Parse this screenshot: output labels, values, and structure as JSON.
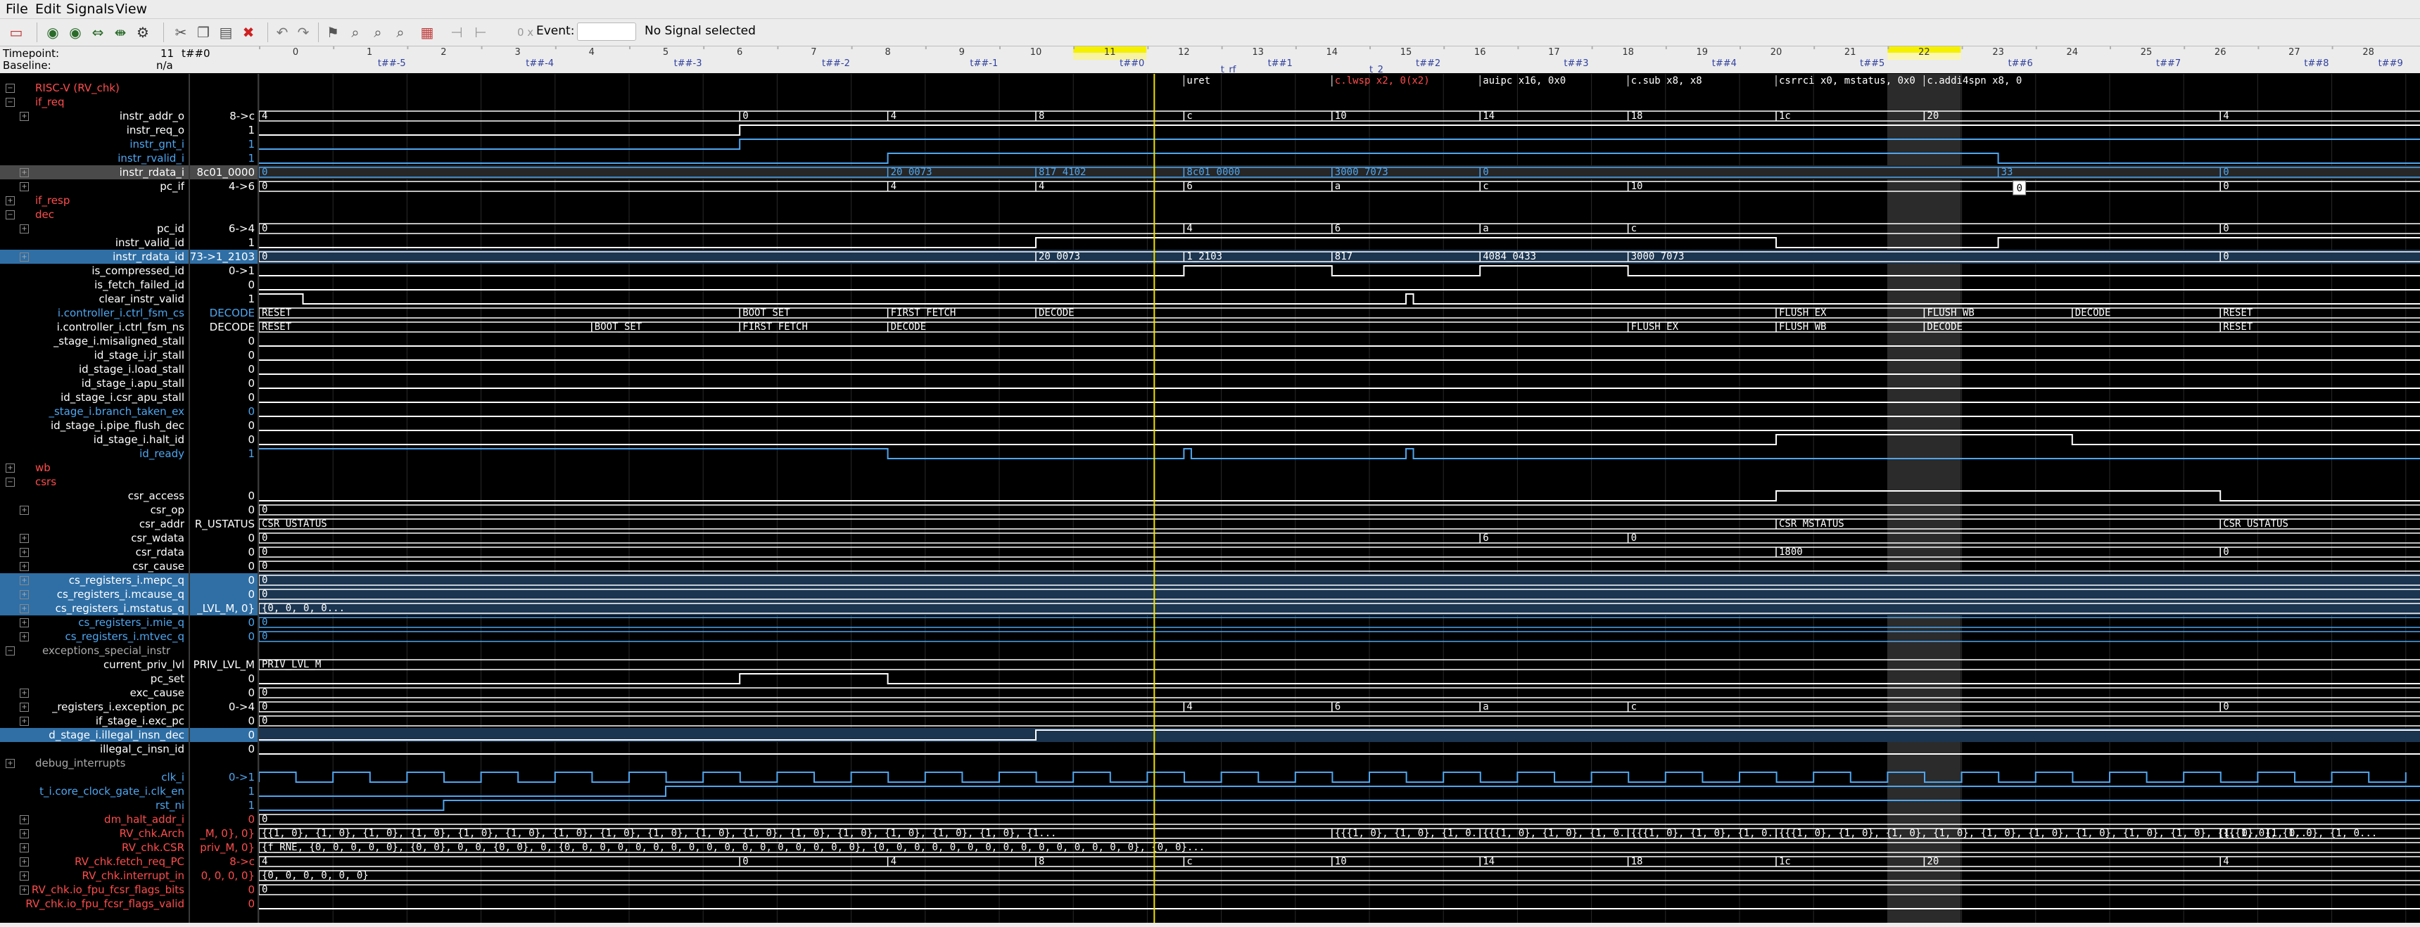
{
  "menu": [
    "File",
    "Edit",
    "Signals",
    "View"
  ],
  "toolbar": {
    "time_label": "0 x",
    "event_label": "Event:",
    "event_value": "",
    "status": "No Signal selected"
  },
  "timepoint": {
    "label": "Timepoint:",
    "value": "11",
    "marker": "t##0",
    "baseline_label": "Baseline:",
    "baseline_value": "n/a"
  },
  "ruler": {
    "cycles": [
      "0",
      "1",
      "2",
      "3",
      "4",
      "5",
      "6",
      "7",
      "8",
      "9",
      "10",
      "11",
      "12",
      "13",
      "14",
      "15",
      "16",
      "17",
      "18",
      "19",
      "20",
      "21",
      "22",
      "23",
      "24",
      "25",
      "26",
      "27",
      "28"
    ],
    "markers": [
      {
        "label": "t##-5",
        "cycle": 1.3
      },
      {
        "label": "t##-4",
        "cycle": 3.3
      },
      {
        "label": "t##-3",
        "cycle": 5.3
      },
      {
        "label": "t##-2",
        "cycle": 7.3
      },
      {
        "label": "t##-1",
        "cycle": 9.3
      },
      {
        "label": "t##0",
        "cycle": 11.3
      },
      {
        "label": "t##1",
        "cycle": 13.3
      },
      {
        "label": "t##2",
        "cycle": 15.3
      },
      {
        "label": "t##3",
        "cycle": 17.3
      },
      {
        "label": "t##4",
        "cycle": 19.3
      },
      {
        "label": "t##5",
        "cycle": 21.3
      },
      {
        "label": "t##6",
        "cycle": 23.3
      },
      {
        "label": "t##7",
        "cycle": 25.3
      },
      {
        "label": "t##8",
        "cycle": 27.3
      },
      {
        "label": "t##9",
        "cycle": 28.3
      }
    ],
    "annotations": [
      {
        "label": "t_rf",
        "cycle": 12.6
      },
      {
        "label": "t_2",
        "cycle": 14.6
      }
    ],
    "highlight_cycles": [
      11,
      22
    ],
    "cursor_cycle": 11.6
  },
  "colors": {
    "bg": "#000000",
    "grid": "#2a2a2a",
    "wave": "#ffffff",
    "blue": "#4ea6f0",
    "red": "#ff4c4c",
    "hl": "#2f6fa6",
    "cursor": "#f0e000"
  },
  "rows": [
    {
      "name": "RISC-V (RV_chk)",
      "color": "red",
      "group": true,
      "expanded": true
    },
    {
      "name": "if_req",
      "color": "red",
      "group": true,
      "expanded": true
    },
    {
      "name": "instr_addr_o",
      "value": "8->c",
      "exp": true,
      "wave": {
        "type": "bus",
        "segs": [
          [
            0,
            "4"
          ],
          [
            6,
            "0"
          ],
          [
            8,
            "4"
          ],
          [
            10,
            "8"
          ],
          [
            12,
            "c"
          ],
          [
            14,
            "10"
          ],
          [
            16,
            "14"
          ],
          [
            18,
            "18"
          ],
          [
            20,
            "1c"
          ],
          [
            22,
            "20"
          ],
          [
            26,
            "4"
          ]
        ]
      }
    },
    {
      "name": "instr_req_o",
      "value": "1",
      "wave": {
        "type": "bit",
        "start": 0,
        "edges": [
          6
        ]
      }
    },
    {
      "name": "instr_gnt_i",
      "value": "1",
      "color": "blue",
      "wave": {
        "type": "bit",
        "start": 0,
        "edges": [
          6
        ],
        "color": "blue"
      }
    },
    {
      "name": "instr_rvalid_i",
      "value": "1",
      "color": "blue",
      "wave": {
        "type": "bit",
        "start": 0,
        "edges": [
          8,
          23
        ],
        "color": "blue"
      }
    },
    {
      "name": "instr_rdata_i",
      "value": "8c01_0000",
      "hl": "grey",
      "exp": true,
      "wave": {
        "type": "bus",
        "color": "blue",
        "segs": [
          [
            0,
            "0"
          ],
          [
            8,
            "20_0073"
          ],
          [
            10,
            "817_4102"
          ],
          [
            12,
            "8c01_0000"
          ],
          [
            14,
            "3000_7073"
          ],
          [
            16,
            "0"
          ],
          [
            23,
            "33"
          ],
          [
            26,
            "0"
          ]
        ]
      }
    },
    {
      "name": "pc_if",
      "value": "4->6",
      "exp": true,
      "wave": {
        "type": "bus",
        "segs": [
          [
            0,
            "0"
          ],
          [
            8,
            "4"
          ],
          [
            10,
            "4"
          ],
          [
            12,
            "6"
          ],
          [
            14,
            "a"
          ],
          [
            16,
            "c"
          ],
          [
            18,
            "10"
          ],
          [
            26,
            "0"
          ]
        ]
      }
    },
    {
      "name": "if_resp",
      "color": "red",
      "group": true
    },
    {
      "name": "dec",
      "color": "red",
      "group": true,
      "expanded": true
    },
    {
      "name": "pc_id",
      "value": "6->4",
      "exp": true,
      "wave": {
        "type": "bus",
        "segs": [
          [
            0,
            "0"
          ],
          [
            12,
            "4"
          ],
          [
            14,
            "6"
          ],
          [
            16,
            "a"
          ],
          [
            18,
            "c"
          ],
          [
            26,
            "0"
          ]
        ]
      }
    },
    {
      "name": "instr_valid_id",
      "value": "1",
      "wave": {
        "type": "bit",
        "start": 0,
        "edges": [
          10,
          20,
          23
        ]
      }
    },
    {
      "name": "instr_rdata_id",
      "value": "73->1_2103",
      "hl": "blue",
      "exp": true,
      "wave": {
        "type": "bus",
        "segs": [
          [
            0,
            "0"
          ],
          [
            10,
            "20_0073"
          ],
          [
            12,
            "1_2103"
          ],
          [
            14,
            "817"
          ],
          [
            16,
            "4084_0433"
          ],
          [
            18,
            "3000_7073"
          ],
          [
            26,
            "0"
          ]
        ]
      }
    },
    {
      "name": "is_compressed_id",
      "value": "0->1",
      "wave": {
        "type": "bit",
        "start": 0,
        "edges": [
          12,
          14,
          16,
          18
        ]
      }
    },
    {
      "name": "is_fetch_failed_id",
      "value": "0",
      "wave": {
        "type": "bit",
        "start": 0,
        "edges": []
      }
    },
    {
      "name": "clear_instr_valid",
      "value": "1",
      "wave": {
        "type": "bit",
        "start": 1,
        "edges": [
          0.1,
          15,
          15.1
        ]
      }
    },
    {
      "name": "i.controller_i.ctrl_fsm_cs",
      "value": "DECODE",
      "color": "blue",
      "wave": {
        "type": "bus",
        "segs": [
          [
            0,
            "RESET"
          ],
          [
            6,
            "BOOT_SET"
          ],
          [
            8,
            "FIRST_FETCH"
          ],
          [
            10,
            "DECODE"
          ],
          [
            20,
            "FLUSH_EX"
          ],
          [
            22,
            "FLUSH_WB"
          ],
          [
            24,
            "DECODE"
          ],
          [
            26,
            "RESET"
          ]
        ]
      }
    },
    {
      "name": "i.controller_i.ctrl_fsm_ns",
      "value": "DECODE",
      "wave": {
        "type": "bus",
        "segs": [
          [
            0,
            "RESET"
          ],
          [
            4,
            "BOOT_SET"
          ],
          [
            6,
            "FIRST_FETCH"
          ],
          [
            8,
            "DECODE"
          ],
          [
            18,
            "FLUSH_EX"
          ],
          [
            20,
            "FLUSH_WB"
          ],
          [
            22,
            "DECODE"
          ],
          [
            26,
            "RESET"
          ]
        ]
      }
    },
    {
      "name": "_stage_i.misaligned_stall",
      "value": "0",
      "wave": {
        "type": "bit",
        "start": 0,
        "edges": []
      }
    },
    {
      "name": "id_stage_i.jr_stall",
      "value": "0",
      "wave": {
        "type": "bit",
        "start": 0,
        "edges": []
      }
    },
    {
      "name": "id_stage_i.load_stall",
      "value": "0",
      "wave": {
        "type": "bit",
        "start": 0,
        "edges": []
      }
    },
    {
      "name": "id_stage_i.apu_stall",
      "value": "0",
      "wave": {
        "type": "bit",
        "start": 0,
        "edges": []
      }
    },
    {
      "name": "id_stage_i.csr_apu_stall",
      "value": "0",
      "wave": {
        "type": "bit",
        "start": 0,
        "edges": []
      }
    },
    {
      "name": "_stage_i.branch_taken_ex",
      "value": "0",
      "color": "blue",
      "wave": {
        "type": "bit",
        "start": 0,
        "edges": []
      }
    },
    {
      "name": "id_stage_i.pipe_flush_dec",
      "value": "0",
      "wave": {
        "type": "bit",
        "start": 0,
        "edges": []
      }
    },
    {
      "name": "id_stage_i.halt_id",
      "value": "0",
      "wave": {
        "type": "bit",
        "start": 0,
        "edges": [
          20,
          24
        ]
      }
    },
    {
      "name": "id_ready",
      "value": "1",
      "color": "blue",
      "wave": {
        "type": "bit",
        "start": 1,
        "edges": [
          8,
          12,
          12.1,
          15,
          15.1
        ],
        "color": "blue"
      }
    },
    {
      "name": "wb",
      "color": "red",
      "group": true
    },
    {
      "name": "csrs",
      "color": "red",
      "group": true,
      "expanded": true
    },
    {
      "name": "csr_access",
      "value": "0",
      "wave": {
        "type": "bit",
        "start": 0,
        "edges": [
          20,
          26
        ]
      }
    },
    {
      "name": "csr_op",
      "value": "0",
      "exp": true,
      "wave": {
        "type": "bus",
        "segs": [
          [
            0,
            "0"
          ]
        ]
      }
    },
    {
      "name": "csr_addr",
      "value": "R_USTATUS",
      "wave": {
        "type": "bus",
        "segs": [
          [
            0,
            "CSR_USTATUS"
          ],
          [
            20,
            "CSR_MSTATUS"
          ],
          [
            26,
            "CSR_USTATUS"
          ]
        ]
      }
    },
    {
      "name": "csr_wdata",
      "value": "0",
      "exp": true,
      "wave": {
        "type": "bus",
        "segs": [
          [
            0,
            "0"
          ],
          [
            16,
            "6"
          ],
          [
            18,
            "0"
          ]
        ]
      }
    },
    {
      "name": "csr_rdata",
      "value": "0",
      "exp": true,
      "wave": {
        "type": "bus",
        "segs": [
          [
            0,
            "0"
          ],
          [
            20,
            "1800"
          ],
          [
            26,
            "0"
          ]
        ]
      }
    },
    {
      "name": "csr_cause",
      "value": "0",
      "exp": true,
      "wave": {
        "type": "bus",
        "segs": [
          [
            0,
            "0"
          ]
        ]
      }
    },
    {
      "name": "cs_registers_i.mepc_q",
      "value": "0",
      "hl": "blue",
      "exp": true,
      "wave": {
        "type": "bus",
        "segs": [
          [
            0,
            "0"
          ]
        ]
      }
    },
    {
      "name": "cs_registers_i.mcause_q",
      "value": "0",
      "hl": "blue",
      "exp": true,
      "wave": {
        "type": "bus",
        "segs": [
          [
            0,
            "0"
          ]
        ]
      }
    },
    {
      "name": "cs_registers_i.mstatus_q",
      "value": "_LVL_M, 0}",
      "hl": "blue",
      "exp": true,
      "wave": {
        "type": "bus",
        "segs": [
          [
            0,
            "{0, 0, 0, 0..."
          ]
        ]
      }
    },
    {
      "name": "cs_registers_i.mie_q",
      "value": "0",
      "color": "blue",
      "exp": true,
      "wave": {
        "type": "bus",
        "color": "blue",
        "segs": [
          [
            0,
            "0"
          ]
        ]
      }
    },
    {
      "name": "cs_registers_i.mtvec_q",
      "value": "0",
      "color": "blue",
      "exp": true,
      "wave": {
        "type": "bus",
        "color": "blue",
        "segs": [
          [
            0,
            "0"
          ]
        ]
      }
    },
    {
      "name": "exceptions_special_instr",
      "group": true,
      "expanded": true
    },
    {
      "name": "current_priv_lvl",
      "value": "PRIV_LVL_M",
      "wave": {
        "type": "bus",
        "segs": [
          [
            0,
            "PRIV_LVL_M"
          ]
        ]
      }
    },
    {
      "name": "pc_set",
      "value": "0",
      "wave": {
        "type": "bit",
        "start": 0,
        "edges": [
          6,
          8
        ]
      }
    },
    {
      "name": "exc_cause",
      "value": "0",
      "exp": true,
      "wave": {
        "type": "bus",
        "segs": [
          [
            0,
            "0"
          ]
        ]
      }
    },
    {
      "name": "_registers_i.exception_pc",
      "value": "0->4",
      "exp": true,
      "wave": {
        "type": "bus",
        "segs": [
          [
            0,
            "0"
          ],
          [
            12,
            "4"
          ],
          [
            14,
            "6"
          ],
          [
            16,
            "a"
          ],
          [
            18,
            "c"
          ],
          [
            26,
            "0"
          ]
        ]
      }
    },
    {
      "name": "if_stage_i.exc_pc",
      "value": "0",
      "exp": true,
      "wave": {
        "type": "bus",
        "segs": [
          [
            0,
            "0"
          ]
        ]
      }
    },
    {
      "name": "d_stage_i.illegal_insn_dec",
      "value": "0",
      "hl": "blue",
      "wave": {
        "type": "bit",
        "start": 0,
        "edges": [
          10
        ]
      }
    },
    {
      "name": "illegal_c_insn_id",
      "value": "0",
      "wave": {
        "type": "bit",
        "start": 0,
        "edges": []
      }
    },
    {
      "name": "debug_interrupts",
      "group": true
    },
    {
      "name": "clk_i",
      "value": "0->1",
      "color": "blue",
      "wave": {
        "type": "clk",
        "color": "blue"
      }
    },
    {
      "name": "t_i.core_clock_gate_i.clk_en",
      "value": "1",
      "color": "blue",
      "wave": {
        "type": "bit",
        "start": 0,
        "edges": [
          5
        ],
        "color": "blue"
      }
    },
    {
      "name": "rst_ni",
      "value": "1",
      "color": "blue",
      "wave": {
        "type": "bit",
        "start": 0,
        "edges": [
          2
        ],
        "color": "blue"
      }
    },
    {
      "name": "dm_halt_addr_i",
      "value": "0",
      "color": "red",
      "exp": true,
      "wave": {
        "type": "bus",
        "segs": [
          [
            0,
            "0"
          ]
        ]
      }
    },
    {
      "name": "RV_chk.Arch",
      "value": "_M, 0}, 0}",
      "color": "red",
      "exp": true,
      "wave": {
        "type": "bus",
        "segs": [
          [
            0,
            "{{1, 0}, {1, 0}, {1, 0}, {1, 0}, {1, 0}, {1, 0}, {1, 0}, {1, 0}, {1, 0}, {1, 0}, {1, 0}, {1, 0}, {1, 0}, {1, 0}, {1, 0}, {1, 0}, {1..."
          ],
          [
            14,
            "{{{1, 0}, {1, 0}, {1, 0..."
          ],
          [
            16,
            "{{{1, 0}, {1, 0}, {1, 0..."
          ],
          [
            18,
            "{{{1, 0}, {1, 0}, {1, 0..."
          ],
          [
            20,
            "{{{1, 0}, {1, 0}, {1, 0}, {1, 0}, {1, 0}, {1, 0}, {1, 0}, {1, 0}, {1, 0}, {1, 0}, {1, 0..."
          ],
          [
            26,
            "{{{1, 0}, {1, 0}, {1, 0..."
          ]
        ]
      }
    },
    {
      "name": "RV_chk.CSR",
      "value": "priv_M, 0}",
      "color": "red",
      "exp": true,
      "wave": {
        "type": "bus",
        "segs": [
          [
            0,
            "{f_RNE, {0, 0, 0, 0, 0}, {0, 0}, 0, 0, {0, 0}, 0, {0, 0, 0, 0, 0, 0, 0, 0, 0, 0, 0, 0, 0, 0, 0, 0, 0}, {0, 0, 0, 0, 0, 0, 0, 0, 0, 0, 0, 0, 0, 0, 0}, {0, 0}..."
          ]
        ]
      }
    },
    {
      "name": "RV_chk.fetch_req_PC",
      "value": "8->c",
      "color": "red",
      "exp": true,
      "wave": {
        "type": "bus",
        "segs": [
          [
            0,
            "4"
          ],
          [
            6,
            "0"
          ],
          [
            8,
            "4"
          ],
          [
            10,
            "8"
          ],
          [
            12,
            "c"
          ],
          [
            14,
            "10"
          ],
          [
            16,
            "14"
          ],
          [
            18,
            "18"
          ],
          [
            20,
            "1c"
          ],
          [
            22,
            "20"
          ],
          [
            26,
            "4"
          ]
        ]
      }
    },
    {
      "name": "RV_chk.interrupt_in",
      "value": "0, 0, 0, 0}",
      "color": "red",
      "exp": true,
      "wave": {
        "type": "bus",
        "segs": [
          [
            0,
            "{0, 0, 0, 0, 0, 0}"
          ]
        ]
      }
    },
    {
      "name": "RV_chk.io_fpu_fcsr_flags_bits",
      "value": "0",
      "color": "red",
      "exp": true,
      "wave": {
        "type": "bus",
        "segs": [
          [
            0,
            "0"
          ]
        ]
      }
    },
    {
      "name": "RV_chk.io_fpu_fcsr_flags_valid",
      "value": "0",
      "color": "red",
      "wave": {
        "type": "bit",
        "start": 0,
        "edges": []
      }
    }
  ],
  "top_labels": [
    {
      "cycle": 12,
      "text": "uret"
    },
    {
      "cycle": 14,
      "text": "c.lwsp x2, 0(x2)",
      "color": "red"
    },
    {
      "cycle": 16,
      "text": "auipc x16, 0x0"
    },
    {
      "cycle": 18,
      "text": "c.sub x8, x8"
    },
    {
      "cycle": 20,
      "text": "csrrci x0, mstatus, 0x0"
    },
    {
      "cycle": 22,
      "text": "c.addi4spn x8, 0"
    }
  ],
  "tooltip": "0"
}
